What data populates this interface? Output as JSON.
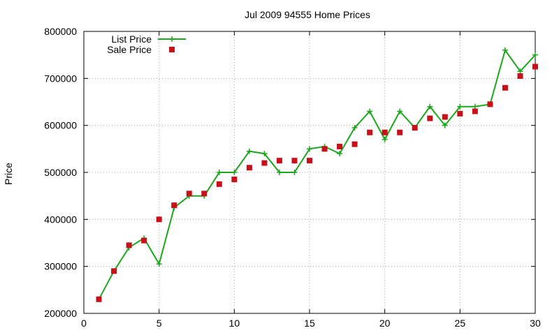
{
  "chart_data": {
    "type": "line",
    "title": "Jul 2009 94555 Home Prices",
    "xlabel": "",
    "ylabel": "Price",
    "xlim": [
      0,
      30
    ],
    "ylim": [
      200000,
      800000
    ],
    "xticks": [
      0,
      5,
      10,
      15,
      20,
      25,
      30
    ],
    "yticks": [
      200000,
      300000,
      400000,
      500000,
      600000,
      700000,
      800000
    ],
    "grid": true,
    "legend_position": "top-left",
    "x": [
      1,
      2,
      3,
      4,
      5,
      6,
      7,
      8,
      9,
      10,
      11,
      12,
      13,
      14,
      15,
      16,
      17,
      18,
      19,
      20,
      21,
      22,
      23,
      24,
      25,
      26,
      27,
      28,
      29,
      30
    ],
    "series": [
      {
        "name": "List Price",
        "style": "line+cross",
        "color": "#1ca61c",
        "values": [
          230000,
          290000,
          340000,
          360000,
          305000,
          425000,
          450000,
          450000,
          500000,
          500000,
          545000,
          540000,
          500000,
          500000,
          550000,
          555000,
          540000,
          595000,
          630000,
          570000,
          630000,
          595000,
          640000,
          600000,
          640000,
          640000,
          645000,
          760000,
          715000,
          750000
        ]
      },
      {
        "name": "Sale Price",
        "style": "square",
        "color": "#c8101a",
        "values": [
          230000,
          290000,
          345000,
          355000,
          400000,
          430000,
          455000,
          455000,
          475000,
          485000,
          510000,
          520000,
          525000,
          525000,
          525000,
          550000,
          555000,
          560000,
          585000,
          585000,
          585000,
          595000,
          615000,
          618000,
          625000,
          630000,
          645000,
          680000,
          705000,
          725000
        ]
      }
    ]
  }
}
